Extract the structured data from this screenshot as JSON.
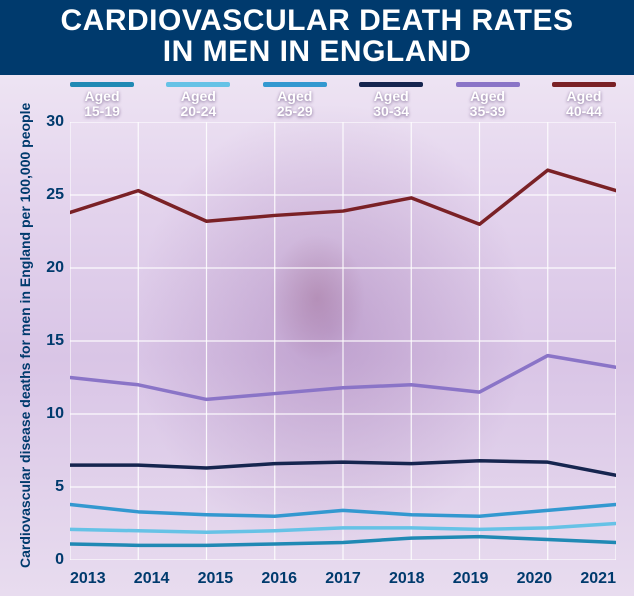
{
  "title_line1": "CARDIOVASCULAR DEATH RATES",
  "title_line2": "IN MEN IN ENGLAND",
  "ylabel": "Cardiovascular disease deaths for men in England per 100,000 people",
  "chart": {
    "type": "line",
    "x_labels": [
      "2013",
      "2014",
      "2015",
      "2016",
      "2017",
      "2018",
      "2019",
      "2020",
      "2021"
    ],
    "ylim": [
      0,
      30
    ],
    "yticks": [
      0,
      5,
      10,
      15,
      20,
      25,
      30
    ],
    "grid_color": "#ffffff",
    "background_accent": "#d9c5e6",
    "title_bar_color": "#003a6d",
    "axis_text_color": "#003a6d",
    "line_width": 3.5,
    "series": [
      {
        "key": "s0",
        "label_top": "Aged",
        "label_bot": "15-19",
        "color": "#2089b4",
        "values": [
          1.1,
          1.0,
          1.0,
          1.1,
          1.2,
          1.5,
          1.6,
          1.4,
          1.2
        ]
      },
      {
        "key": "s1",
        "label_top": "Aged",
        "label_bot": "20-24",
        "color": "#66c2e6",
        "values": [
          2.1,
          2.0,
          1.9,
          2.0,
          2.2,
          2.2,
          2.1,
          2.2,
          2.5
        ]
      },
      {
        "key": "s2",
        "label_top": "Aged",
        "label_bot": "25-29",
        "color": "#3398d0",
        "values": [
          3.8,
          3.3,
          3.1,
          3.0,
          3.4,
          3.1,
          3.0,
          3.4,
          3.8
        ]
      },
      {
        "key": "s3",
        "label_top": "Aged",
        "label_bot": "30-34",
        "color": "#16254f",
        "values": [
          6.5,
          6.5,
          6.3,
          6.6,
          6.7,
          6.6,
          6.8,
          6.7,
          5.8
        ]
      },
      {
        "key": "s4",
        "label_top": "Aged",
        "label_bot": "35-39",
        "color": "#8a74c7",
        "values": [
          12.5,
          12.0,
          11.0,
          11.4,
          11.8,
          12.0,
          11.5,
          14.0,
          13.2
        ]
      },
      {
        "key": "s5",
        "label_top": "Aged",
        "label_bot": "40-44",
        "color": "#7a2126",
        "values": [
          23.8,
          25.3,
          23.2,
          23.6,
          23.9,
          24.8,
          23.0,
          26.7,
          25.3
        ]
      }
    ]
  }
}
